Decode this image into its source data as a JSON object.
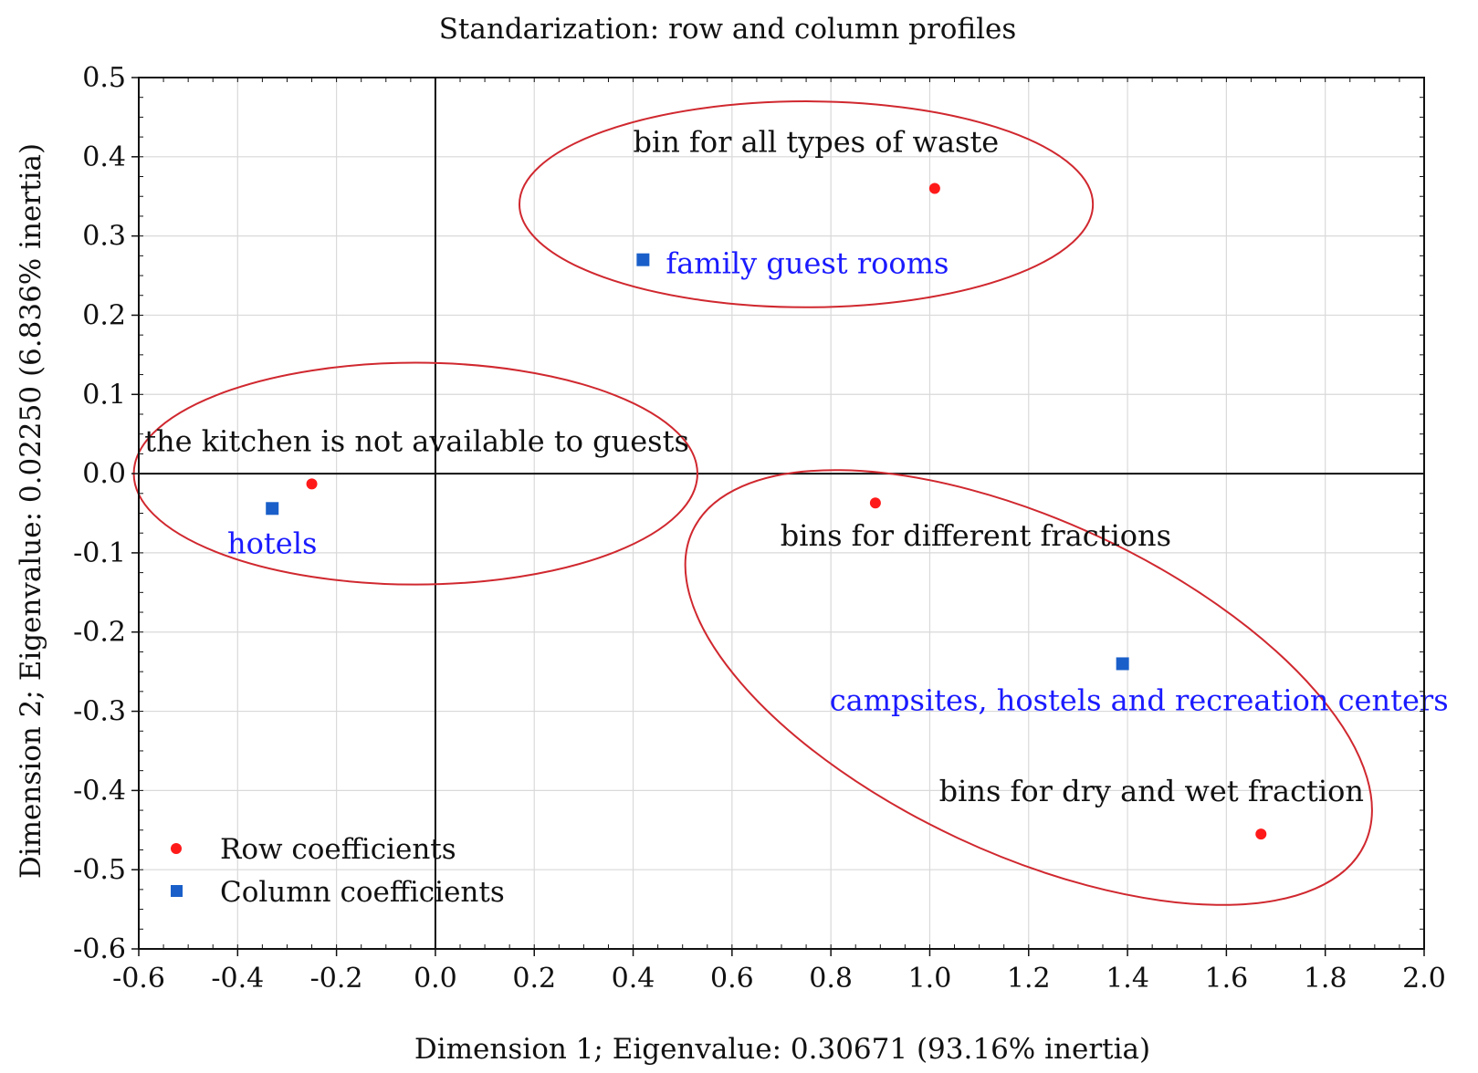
{
  "colors": {
    "row_point": "#ff1a1a",
    "column_point": "#1a5fc9",
    "column_label": "#1a1aff",
    "ellipse": "#d0282f",
    "grid": "#d9d9d9",
    "axis": "#111111"
  },
  "chart_data": {
    "type": "scatter",
    "title": "Standarization: row and column profiles",
    "xlabel": "Dimension 1; Eigenvalue: 0.30671 (93.16% inertia)",
    "ylabel": "Dimension 2; Eigenvalue: 0.02250 (6.836% inertia)",
    "xlim": [
      -0.6,
      2.0
    ],
    "ylim": [
      -0.6,
      0.5
    ],
    "grid": true,
    "x_ticks": [
      "-0.6",
      "-0.4",
      "-0.2",
      "0.0",
      "0.2",
      "0.4",
      "0.6",
      "0.8",
      "1.0",
      "1.2",
      "1.4",
      "1.6",
      "1.8",
      "2.0"
    ],
    "y_ticks": [
      "0.5",
      "0.4",
      "0.3",
      "0.2",
      "0.1",
      "0.0",
      "-0.1",
      "-0.2",
      "-0.3",
      "-0.4",
      "-0.5",
      "-0.6"
    ],
    "legend": {
      "position": "bottom-left",
      "entries": [
        "Row coefficients",
        "Column coefficients"
      ]
    },
    "series": [
      {
        "name": "Row coefficients",
        "marker": "circle",
        "points": [
          {
            "label": "bin for all types of waste",
            "x": 1.01,
            "y": 0.36
          },
          {
            "label": "the kitchen is not available to guests",
            "x": -0.25,
            "y": -0.013
          },
          {
            "label": "bins for different fractions",
            "x": 0.89,
            "y": -0.037
          },
          {
            "label": "bins for dry and wet fraction",
            "x": 1.67,
            "y": -0.455
          }
        ]
      },
      {
        "name": "Column coefficients",
        "marker": "square",
        "points": [
          {
            "label": "family guest rooms",
            "x": 0.42,
            "y": 0.27
          },
          {
            "label": "hotels",
            "x": -0.33,
            "y": -0.044
          },
          {
            "label": "campsites, hostels and recreation centers",
            "x": 1.39,
            "y": -0.24
          }
        ]
      }
    ],
    "annotations": [
      {
        "type": "ellipse",
        "cx": 0.75,
        "cy": 0.34,
        "rx": 0.58,
        "ry": 0.13,
        "rotation": 0
      },
      {
        "type": "ellipse",
        "cx": -0.04,
        "cy": 0.0,
        "rx": 0.57,
        "ry": 0.14,
        "rotation": 0
      },
      {
        "type": "ellipse",
        "cx": 1.2,
        "cy": -0.27,
        "rx": 0.75,
        "ry": 0.21,
        "rotation": 25
      }
    ]
  }
}
